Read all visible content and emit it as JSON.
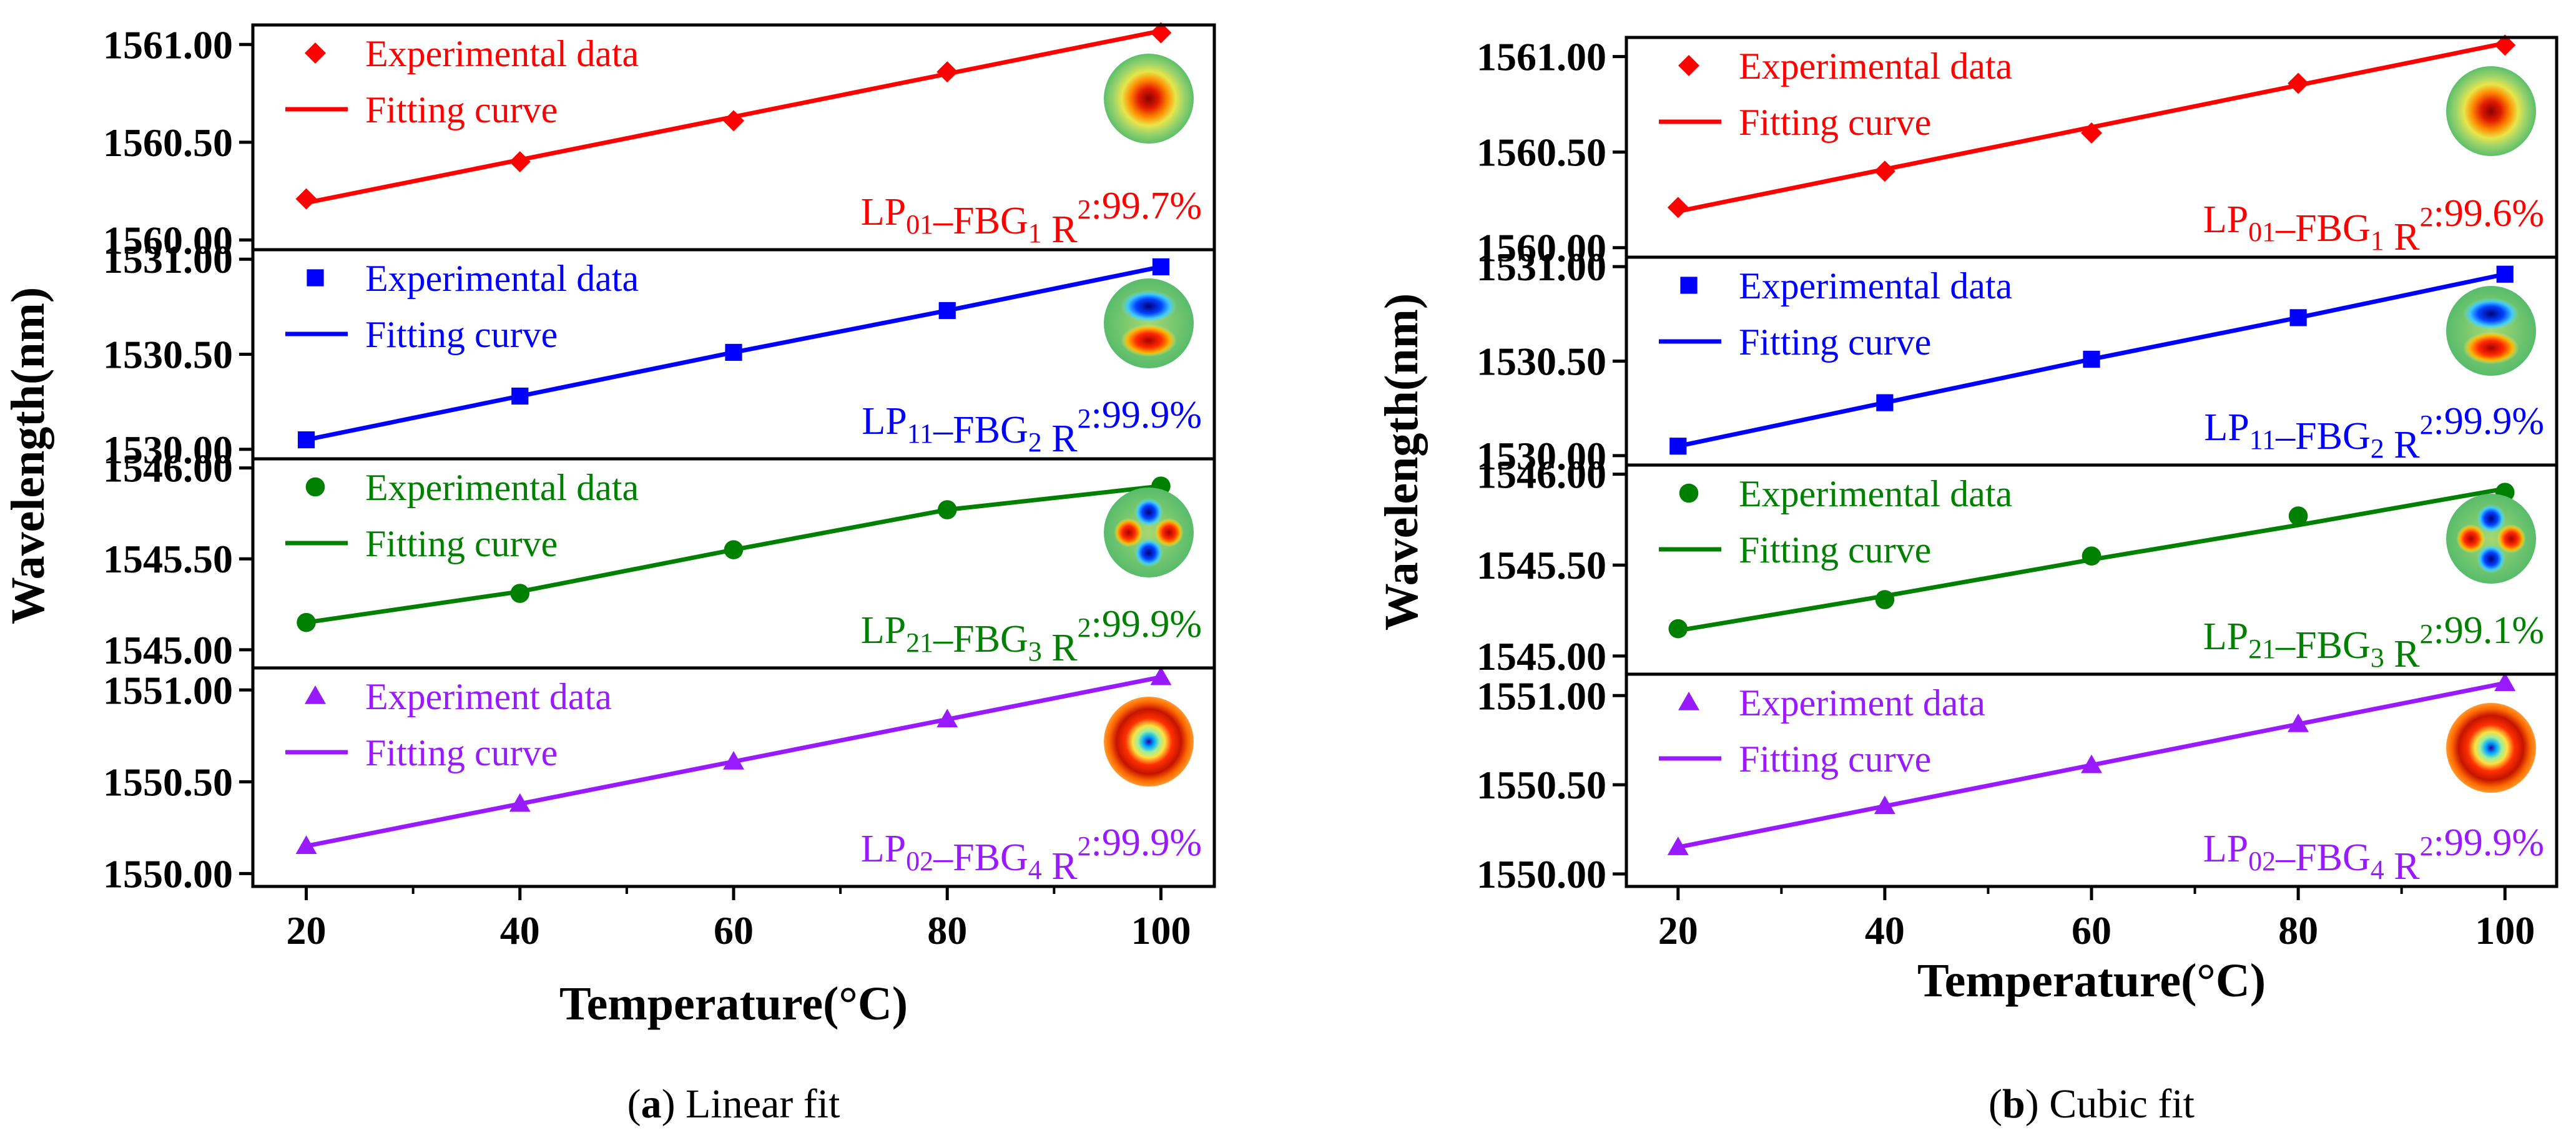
{
  "chart_data": [
    {
      "type": "line",
      "id": "a",
      "caption_letter": "a",
      "caption_rest": " Linear fit",
      "xlabel": "Temperature(°C)",
      "ylabel": "Wavelength(nm)",
      "x": [
        20,
        40,
        60,
        80,
        100
      ],
      "xticks": [
        "20",
        "40",
        "60",
        "80",
        "100"
      ],
      "xlim": [
        15,
        105
      ],
      "panels": [
        {
          "mode": "LP01",
          "color": "#ff0000",
          "marker": "diamond",
          "ylim": [
            1559.95,
            1561.1
          ],
          "yticks": [
            1560.0,
            1560.5,
            1561.0
          ],
          "ytick_labels": [
            "1560.00",
            "1560.50",
            "1561.00"
          ],
          "values": [
            1560.21,
            1560.4,
            1560.61,
            1560.86,
            1561.06
          ],
          "fit": [
            1560.19,
            1560.41,
            1560.63,
            1560.85,
            1561.07
          ],
          "legend_data": "Experimental data",
          "legend_fit": "Fitting curve",
          "annotation": {
            "lp": "LP",
            "lp_sub": "01",
            "fbg": "–FBG",
            "fbg_sub": "1",
            "r": " R",
            "r_sup": "2",
            "val": ":99.7%"
          }
        },
        {
          "mode": "LP11",
          "color": "#0000ff",
          "marker": "square",
          "ylim": [
            1529.95,
            1531.05
          ],
          "yticks": [
            1530.0,
            1530.5,
            1531.0
          ],
          "ytick_labels": [
            "1530.00",
            "1530.50",
            "1531.00"
          ],
          "values": [
            1530.05,
            1530.28,
            1530.51,
            1530.73,
            1530.96
          ],
          "fit": [
            1530.05,
            1530.28,
            1530.51,
            1530.73,
            1530.96
          ],
          "legend_data": "Experimental data",
          "legend_fit": "Fitting curve",
          "annotation": {
            "lp": "LP",
            "lp_sub": "11",
            "fbg": "–FBG",
            "fbg_sub": "2",
            "r": " R",
            "r_sup": "2",
            "val": ":99.9%"
          }
        },
        {
          "mode": "LP21",
          "color": "#008000",
          "marker": "circle",
          "ylim": [
            1544.9,
            1546.05
          ],
          "yticks": [
            1545.0,
            1545.5,
            1546.0
          ],
          "ytick_labels": [
            "1545.00",
            "1545.50",
            "1546.00"
          ],
          "values": [
            1545.15,
            1545.31,
            1545.55,
            1545.77,
            1545.9
          ],
          "fit": [
            1545.15,
            1545.32,
            1545.55,
            1545.77,
            1545.9
          ],
          "legend_data": "Experimental data",
          "legend_fit": "Fitting curve",
          "annotation": {
            "lp": "LP",
            "lp_sub": "21",
            "fbg": "–FBG",
            "fbg_sub": "3",
            "r": " R",
            "r_sup": "2",
            "val": ":99.9%"
          }
        },
        {
          "mode": "LP02",
          "color": "#9a1aff",
          "marker": "triangle",
          "ylim": [
            1549.93,
            1551.12
          ],
          "yticks": [
            1550.0,
            1550.5,
            1551.0
          ],
          "ytick_labels": [
            "1550.00",
            "1550.50",
            "1551.00"
          ],
          "values": [
            1550.15,
            1550.38,
            1550.61,
            1550.84,
            1551.07
          ],
          "fit": [
            1550.15,
            1550.38,
            1550.61,
            1550.84,
            1551.07
          ],
          "legend_data": "Experiment data",
          "legend_fit": "Fitting curve",
          "annotation": {
            "lp": "LP",
            "lp_sub": "02",
            "fbg": "–FBG",
            "fbg_sub": "4",
            "r": " R",
            "r_sup": "2",
            "val": ":99.9%"
          }
        }
      ]
    },
    {
      "type": "line",
      "id": "b",
      "caption_letter": "b",
      "caption_rest": " Cubic fit",
      "xlabel": "Temperature(°C)",
      "ylabel": "Wavelength(nm)",
      "x": [
        20,
        40,
        60,
        80,
        100
      ],
      "xticks": [
        "20",
        "40",
        "60",
        "80",
        "100"
      ],
      "xlim": [
        15,
        105
      ],
      "panels": [
        {
          "mode": "LP01",
          "color": "#ff0000",
          "marker": "diamond",
          "ylim": [
            1559.95,
            1561.1
          ],
          "yticks": [
            1560.0,
            1560.5,
            1561.0
          ],
          "ytick_labels": [
            "1560.00",
            "1560.50",
            "1561.00"
          ],
          "values": [
            1560.21,
            1560.4,
            1560.6,
            1560.86,
            1561.06
          ],
          "fit": [
            1560.19,
            1560.41,
            1560.63,
            1560.85,
            1561.07
          ],
          "legend_data": "Experimental data",
          "legend_fit": "Fitting curve",
          "annotation": {
            "lp": "LP",
            "lp_sub": "01",
            "fbg": "–FBG",
            "fbg_sub": "1",
            "r": " R",
            "r_sup": "2",
            "val": ":99.6%"
          }
        },
        {
          "mode": "LP11",
          "color": "#0000ff",
          "marker": "square",
          "ylim": [
            1529.95,
            1531.05
          ],
          "yticks": [
            1530.0,
            1530.5,
            1531.0
          ],
          "ytick_labels": [
            "1530.00",
            "1530.50",
            "1531.00"
          ],
          "values": [
            1530.05,
            1530.28,
            1530.51,
            1530.73,
            1530.96
          ],
          "fit": [
            1530.05,
            1530.28,
            1530.51,
            1530.73,
            1530.96
          ],
          "legend_data": "Experimental data",
          "legend_fit": "Fitting curve",
          "annotation": {
            "lp": "LP",
            "lp_sub": "11",
            "fbg": "–FBG",
            "fbg_sub": "2",
            "r": " R",
            "r_sup": "2",
            "val": ":99.9%"
          }
        },
        {
          "mode": "LP21",
          "color": "#008000",
          "marker": "circle",
          "ylim": [
            1544.9,
            1546.05
          ],
          "yticks": [
            1545.0,
            1545.5,
            1546.0
          ],
          "ytick_labels": [
            "1545.00",
            "1545.50",
            "1546.00"
          ],
          "values": [
            1545.15,
            1545.31,
            1545.55,
            1545.77,
            1545.9
          ],
          "fit": [
            1545.14,
            1545.33,
            1545.53,
            1545.72,
            1545.92
          ],
          "legend_data": "Experimental data",
          "legend_fit": "Fitting curve",
          "annotation": {
            "lp": "LP",
            "lp_sub": "21",
            "fbg": "–FBG",
            "fbg_sub": "3",
            "r": " R",
            "r_sup": "2",
            "val": ":99.1%"
          }
        },
        {
          "mode": "LP02",
          "color": "#9a1aff",
          "marker": "triangle",
          "ylim": [
            1549.93,
            1551.12
          ],
          "yticks": [
            1550.0,
            1550.5,
            1551.0
          ],
          "ytick_labels": [
            "1550.00",
            "1550.50",
            "1551.00"
          ],
          "values": [
            1550.15,
            1550.38,
            1550.61,
            1550.84,
            1551.07
          ],
          "fit": [
            1550.15,
            1550.38,
            1550.61,
            1550.84,
            1551.07
          ],
          "legend_data": "Experiment data",
          "legend_fit": "Fitting curve",
          "annotation": {
            "lp": "LP",
            "lp_sub": "02",
            "fbg": "–FBG",
            "fbg_sub": "4",
            "r": " R",
            "r_sup": "2",
            "val": ":99.9%"
          }
        }
      ]
    }
  ]
}
